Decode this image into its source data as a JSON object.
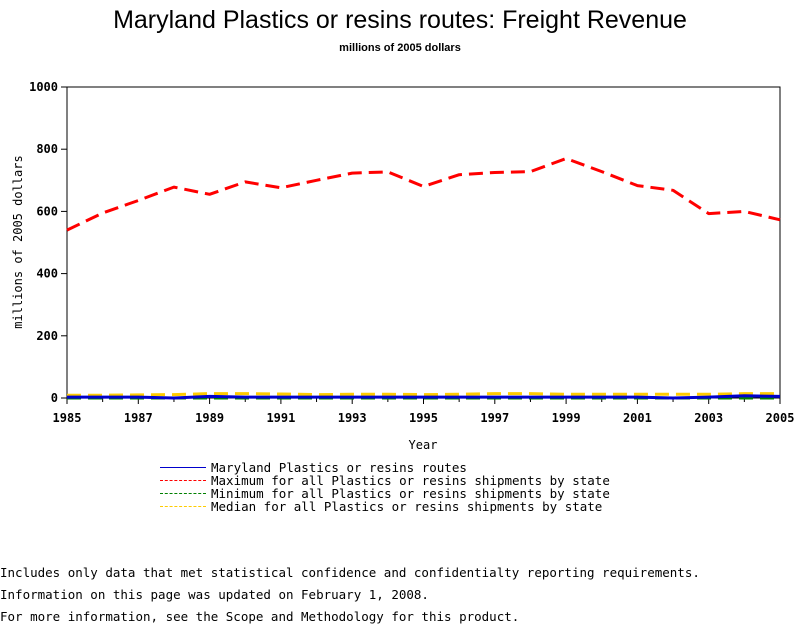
{
  "chart_data": {
    "type": "line",
    "title": "Maryland Plastics or resins routes: Freight Revenue",
    "subtitle": "millions of 2005 dollars",
    "xlabel": "Year",
    "ylabel": "millions of 2005 dollars",
    "xlim": [
      1985,
      2005
    ],
    "ylim": [
      0,
      1000
    ],
    "x_ticks": [
      "1985",
      "1987",
      "1989",
      "1991",
      "1993",
      "1995",
      "1997",
      "1999",
      "2001",
      "2003",
      "2005"
    ],
    "y_ticks": [
      "0",
      "200",
      "400",
      "600",
      "800",
      "1000"
    ],
    "x": [
      1985,
      1986,
      1987,
      1988,
      1989,
      1990,
      1991,
      1992,
      1993,
      1994,
      1995,
      1996,
      1997,
      1998,
      1999,
      2000,
      2001,
      2002,
      2003,
      2004,
      2005
    ],
    "series": [
      {
        "name": "Maryland Plastics or resins routes",
        "color": "#0000cc",
        "style": "solid",
        "values": [
          3,
          3,
          3,
          0,
          5,
          3,
          3,
          3,
          3,
          3,
          3,
          3,
          3,
          3,
          3,
          3,
          3,
          0,
          3,
          7,
          5
        ]
      },
      {
        "name": "Maximum for all Plastics or resins shipments by state",
        "color": "#ff0000",
        "style": "dashed",
        "values": [
          540,
          595,
          635,
          678,
          655,
          695,
          676,
          700,
          723,
          727,
          680,
          718,
          725,
          728,
          770,
          728,
          683,
          668,
          593,
          600,
          573
        ]
      },
      {
        "name": "Minimum for all Plastics or resins shipments by state",
        "color": "#008000",
        "style": "dashed",
        "values": [
          0,
          0,
          0,
          0,
          0,
          0,
          0,
          0,
          0,
          0,
          0,
          0,
          0,
          0,
          0,
          0,
          0,
          0,
          0,
          0,
          0
        ]
      },
      {
        "name": "Median for all Plastics or resins shipments by state",
        "color": "#ffcc00",
        "style": "dashed",
        "values": [
          9,
          9,
          10,
          11,
          14,
          14,
          13,
          11,
          12,
          12,
          11,
          12,
          14,
          14,
          12,
          12,
          12,
          12,
          12,
          14,
          14
        ]
      }
    ],
    "legend_position": "bottom"
  },
  "notes": [
    "Includes only data that met statistical confidence and confidentialty reporting requirements.",
    "For more information, see the Scope and Methodology for this product."
  ],
  "updated": "Information on this page was updated on February 1, 2008."
}
